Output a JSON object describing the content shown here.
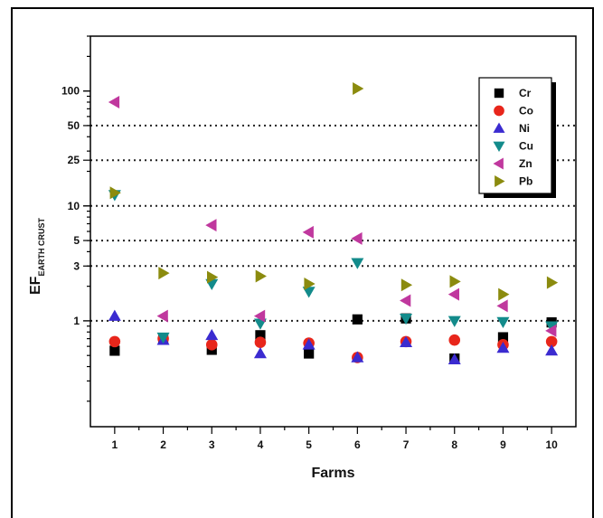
{
  "chart_data": {
    "type": "scatter",
    "title": "",
    "xlabel": "Farms",
    "ylabel_main": "EF",
    "ylabel_sub": "EARTH CRUST",
    "y_scale": "log",
    "ylim": [
      0.12,
      300
    ],
    "xlim": [
      0.5,
      10.5
    ],
    "x": [
      1,
      2,
      3,
      4,
      5,
      6,
      7,
      8,
      9,
      10
    ],
    "x_ticks": [
      "1",
      "2",
      "3",
      "4",
      "5",
      "6",
      "7",
      "8",
      "9",
      "10"
    ],
    "y_ticks": [
      1,
      3,
      5,
      10,
      25,
      50,
      100
    ],
    "y_tick_labels": [
      "1",
      "3",
      "5",
      "10",
      "25",
      "50",
      "100"
    ],
    "reference_lines": [
      1,
      3,
      5,
      10,
      25,
      50
    ],
    "legend_position": "top-right",
    "series": [
      {
        "name": "Cr",
        "marker": "square",
        "color": "#000000",
        "values": [
          0.55,
          0.7,
          0.56,
          0.75,
          0.52,
          1.03,
          1.05,
          0.47,
          0.72,
          0.97
        ]
      },
      {
        "name": "Co",
        "marker": "circle",
        "color": "#e8261b",
        "values": [
          0.66,
          0.7,
          0.62,
          0.65,
          0.64,
          0.48,
          0.66,
          0.68,
          0.62,
          0.66
        ]
      },
      {
        "name": "Ni",
        "marker": "triangle-up",
        "color": "#3b2bd0",
        "values": [
          1.1,
          0.68,
          0.75,
          0.52,
          0.62,
          0.48,
          0.65,
          0.46,
          0.58,
          0.55
        ]
      },
      {
        "name": "Cu",
        "marker": "triangle-down",
        "color": "#138b8b",
        "values": [
          12.5,
          0.72,
          2.1,
          0.95,
          1.8,
          3.2,
          1.05,
          1.0,
          0.98,
          0.9
        ]
      },
      {
        "name": "Zn",
        "marker": "triangle-left",
        "color": "#c0389e",
        "values": [
          80,
          1.1,
          6.8,
          1.1,
          5.9,
          5.2,
          1.5,
          1.7,
          1.35,
          0.82
        ]
      },
      {
        "name": "Pb",
        "marker": "triangle-right",
        "color": "#8b8b0e",
        "values": [
          13,
          2.6,
          2.4,
          2.45,
          2.1,
          105,
          2.05,
          2.2,
          1.7,
          2.15
        ]
      }
    ]
  }
}
